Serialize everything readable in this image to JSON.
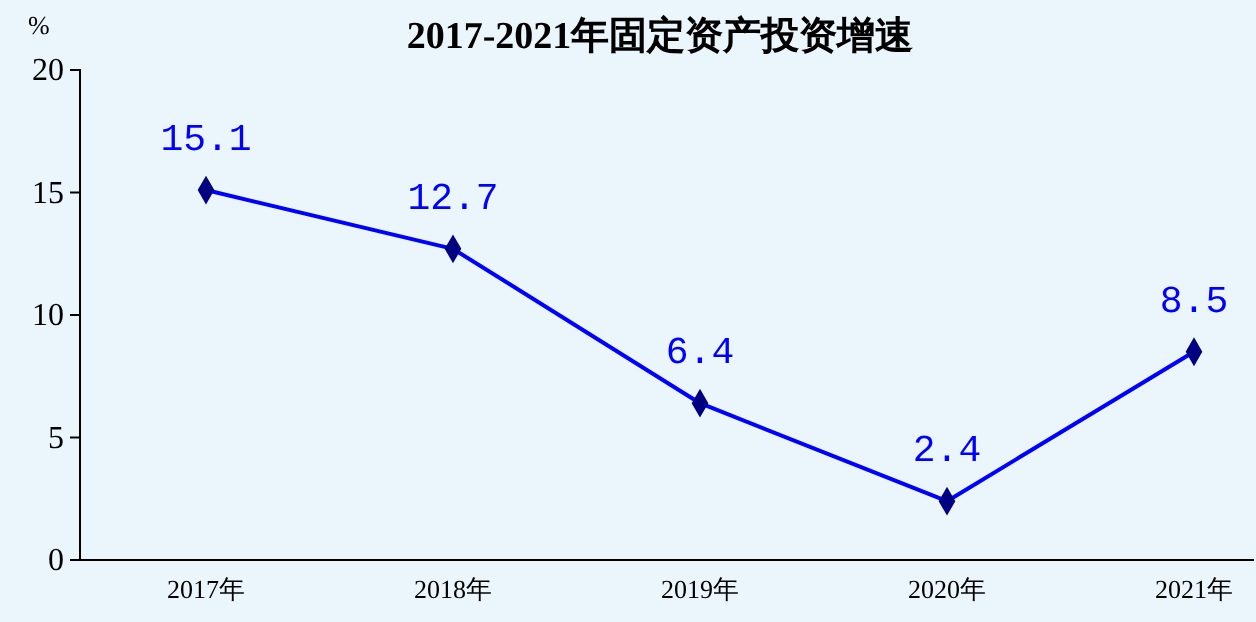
{
  "chart_data": {
    "type": "line",
    "title": "2017-2021年固定资产投资增速",
    "ylabel": "%",
    "categories": [
      "2017年",
      "2018年",
      "2019年",
      "2020年",
      "2021年"
    ],
    "series": [
      {
        "color": "#0000ff",
        "values": [
          15.1,
          12.7,
          6.4,
          2.4,
          8.5
        ]
      }
    ],
    "ylim": [
      0,
      20
    ],
    "yticks": [
      0,
      5,
      10,
      15,
      20
    ],
    "grid": false,
    "marker": "diamond",
    "line_style": "solid",
    "data_labels": true
  }
}
